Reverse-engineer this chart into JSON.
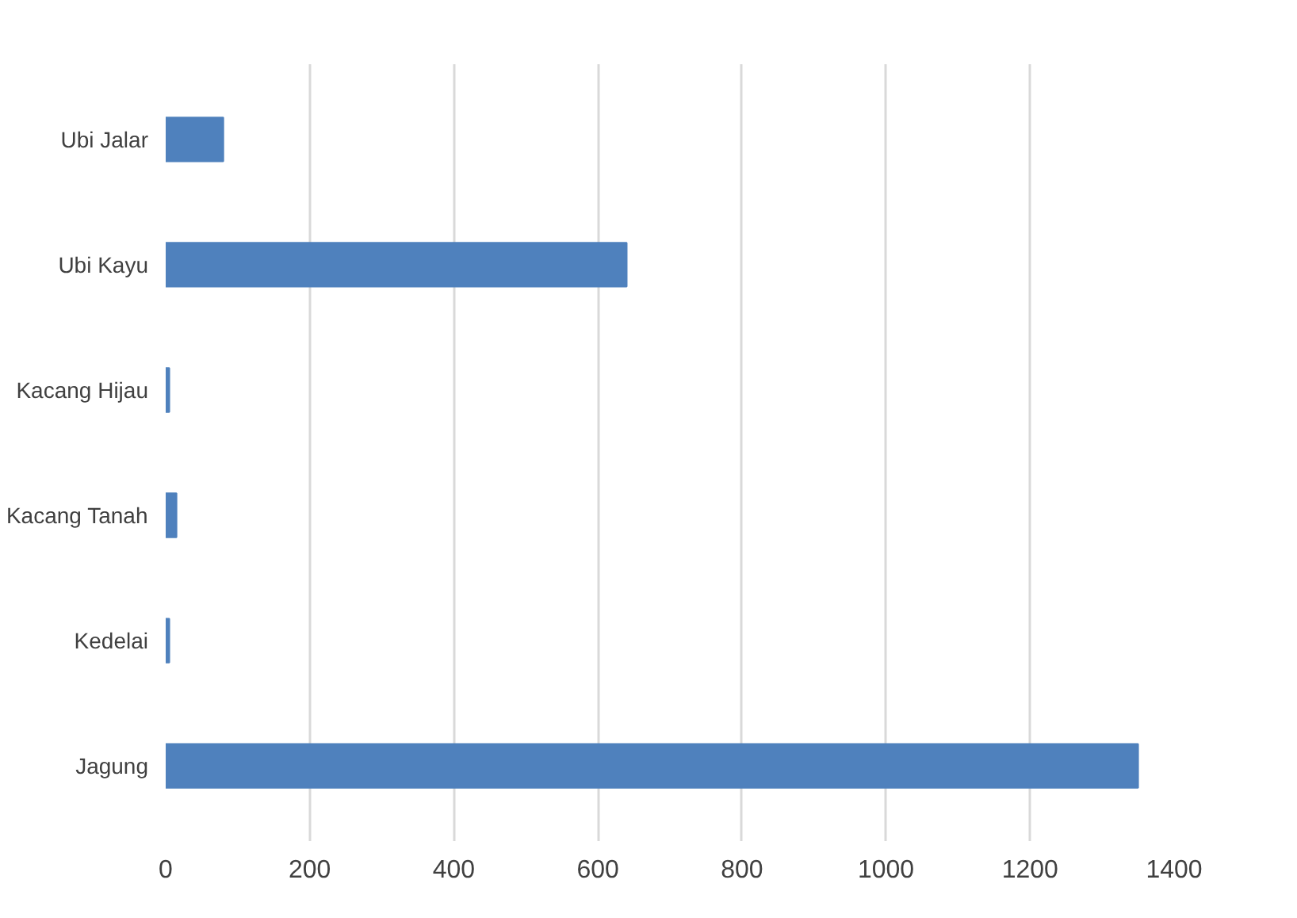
{
  "chart_data": {
    "type": "bar",
    "orientation": "horizontal",
    "categories": [
      "Ubi Jalar",
      "Ubi Kayu",
      "Kacang Hijau",
      "Kacang Tanah",
      "Kedelai",
      "Jagung"
    ],
    "values": [
      80,
      640,
      5,
      15,
      5,
      1350
    ],
    "color": "#4f81bd",
    "xlim": [
      0,
      1400
    ],
    "xticks": [
      0,
      200,
      400,
      600,
      800,
      1000,
      1200,
      1400
    ],
    "grid": "x"
  }
}
